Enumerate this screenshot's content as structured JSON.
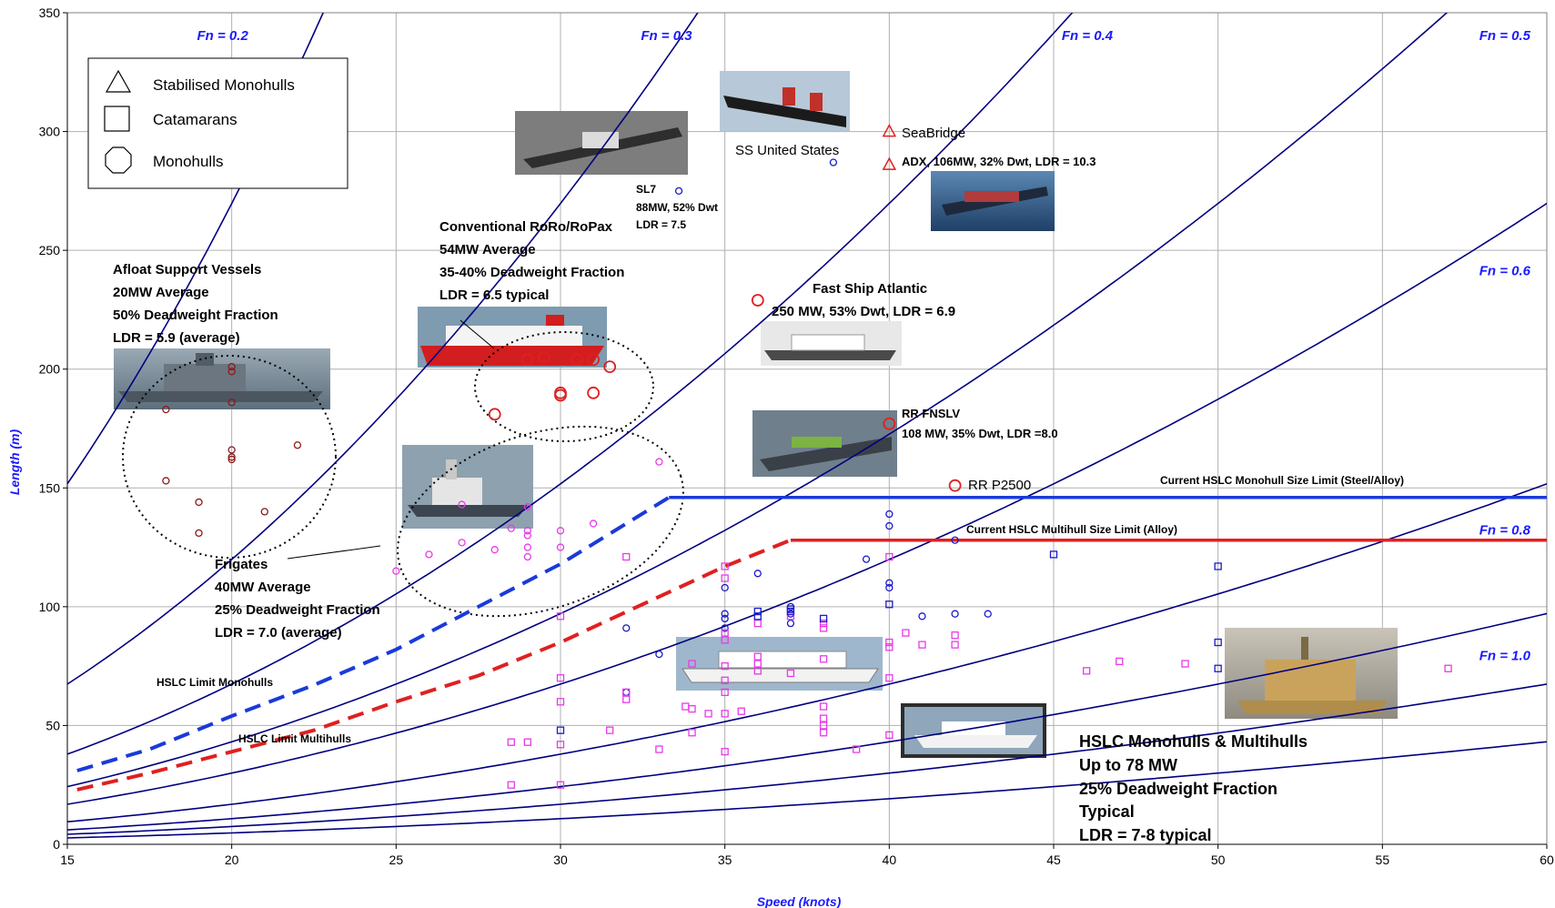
{
  "chart_data": {
    "type": "scatter",
    "title": "",
    "xlabel": "Speed (knots)",
    "ylabel": "Length (m)",
    "xlim": [
      15,
      60
    ],
    "ylim": [
      0,
      350
    ],
    "xticks": [
      15,
      20,
      25,
      30,
      35,
      40,
      45,
      50,
      55,
      60
    ],
    "yticks": [
      0,
      50,
      100,
      150,
      200,
      250,
      300,
      350
    ],
    "grid": true,
    "legend": {
      "placement": "top-left",
      "entries": [
        {
          "name": "Stabilised Monohulls",
          "marker": "triangle"
        },
        {
          "name": "Catamarans",
          "marker": "square"
        },
        {
          "name": "Monohulls",
          "marker": "octagon"
        }
      ]
    },
    "froude_lines": [
      {
        "label": "Fn = 0.2",
        "fn": 0.2
      },
      {
        "label": "Fn = 0.3",
        "fn": 0.3
      },
      {
        "label": "Fn = 0.4",
        "fn": 0.4
      },
      {
        "label": "Fn = 0.5",
        "fn": 0.5
      },
      {
        "label": "Fn = 0.6",
        "fn": 0.6
      },
      {
        "label": "Fn = 0.8",
        "fn": 0.8
      },
      {
        "label": "Fn = 1.0",
        "fn": 1.0
      },
      {
        "label": "",
        "fn": 1.2
      },
      {
        "label": "",
        "fn": 1.5
      }
    ],
    "limit_curves": [
      {
        "name": "HSLC Limit Monohulls",
        "color": "#1a3adb",
        "x": [
          15.3,
          17.5,
          20,
          22.5,
          25,
          27.5,
          30,
          32,
          33.3
        ],
        "y": [
          31,
          40,
          54,
          67,
          82,
          100,
          118,
          135,
          146
        ]
      },
      {
        "name": "HSLC Limit Multihulls",
        "color": "#e02020",
        "x": [
          15.3,
          17.5,
          20,
          22.5,
          25,
          27.5,
          30,
          32.5,
          35,
          37
        ],
        "y": [
          23,
          30,
          39,
          48,
          60,
          71,
          85,
          101,
          117,
          128
        ]
      }
    ],
    "size_limits": [
      {
        "name": "Current HSLC Monohull Size Limit (Steel/Alloy)",
        "color": "#1a3adb",
        "x": [
          33.3,
          60
        ],
        "y": 146
      },
      {
        "name": "Current HSLC Multihull Size Limit (Alloy)",
        "color": "#e02020",
        "x": [
          37,
          60
        ],
        "y": 128
      }
    ],
    "series": [
      {
        "marker": "octagon",
        "color": "#8b1a1a",
        "points": [
          [
            18,
            183
          ],
          [
            18,
            153
          ],
          [
            19,
            144
          ],
          [
            19,
            131
          ],
          [
            20,
            201
          ],
          [
            20,
            199
          ],
          [
            20,
            186
          ],
          [
            20,
            166
          ],
          [
            20,
            163
          ],
          [
            20,
            162
          ],
          [
            21,
            140
          ],
          [
            22,
            168
          ]
        ]
      },
      {
        "marker": "octagon",
        "color": "#e02020",
        "points": [
          [
            28,
            181
          ],
          [
            29,
            204
          ],
          [
            29.5,
            205
          ],
          [
            30,
            190
          ],
          [
            30,
            189
          ],
          [
            30.5,
            204
          ],
          [
            31,
            190
          ],
          [
            31,
            204
          ],
          [
            31.5,
            201
          ],
          [
            36,
            229
          ],
          [
            40,
            177
          ],
          [
            42,
            151
          ]
        ]
      },
      {
        "marker": "octagon",
        "color": "#e83ae8",
        "points": [
          [
            25,
            115
          ],
          [
            26,
            122
          ],
          [
            27,
            127
          ],
          [
            27,
            143
          ],
          [
            28,
            124
          ],
          [
            28.5,
            133
          ],
          [
            29,
            142
          ],
          [
            29,
            132
          ],
          [
            29,
            130
          ],
          [
            29,
            125
          ],
          [
            29,
            121
          ],
          [
            30,
            132
          ],
          [
            30,
            125
          ],
          [
            31,
            135
          ],
          [
            33,
            161
          ]
        ]
      },
      {
        "marker": "octagon",
        "color": "#1a1acc",
        "points": [
          [
            32,
            91
          ],
          [
            32,
            64
          ],
          [
            33,
            80
          ],
          [
            33.6,
            275
          ],
          [
            35,
            108
          ],
          [
            35,
            97
          ],
          [
            35,
            95
          ],
          [
            35,
            91
          ],
          [
            36,
            114
          ],
          [
            37,
            100
          ],
          [
            37,
            97
          ],
          [
            37,
            93
          ],
          [
            38.3,
            287
          ],
          [
            39.3,
            120
          ],
          [
            40,
            139
          ],
          [
            40,
            134
          ],
          [
            40,
            110
          ],
          [
            40,
            108
          ],
          [
            41,
            96
          ],
          [
            42,
            128
          ],
          [
            42,
            97
          ],
          [
            43,
            97
          ]
        ]
      },
      {
        "marker": "square",
        "color": "#e83ae8",
        "points": [
          [
            28.5,
            43
          ],
          [
            28.5,
            25
          ],
          [
            29,
            43
          ],
          [
            30,
            96
          ],
          [
            30,
            70
          ],
          [
            30,
            60
          ],
          [
            30,
            42
          ],
          [
            30,
            25
          ],
          [
            31.5,
            48
          ],
          [
            32,
            121
          ],
          [
            32,
            64
          ],
          [
            32,
            61
          ],
          [
            33,
            40
          ],
          [
            34,
            76
          ],
          [
            33.8,
            58
          ],
          [
            34,
            57
          ],
          [
            34,
            47
          ],
          [
            34.5,
            55
          ],
          [
            35,
            117
          ],
          [
            35,
            112
          ],
          [
            35,
            89
          ],
          [
            35,
            86
          ],
          [
            35,
            75
          ],
          [
            35,
            69
          ],
          [
            35,
            64
          ],
          [
            35,
            55
          ],
          [
            35,
            39
          ],
          [
            35.5,
            56
          ],
          [
            36,
            93
          ],
          [
            36,
            79
          ],
          [
            36,
            76
          ],
          [
            36,
            73
          ],
          [
            37,
            96
          ],
          [
            37,
            72
          ],
          [
            38,
            93
          ],
          [
            38,
            91
          ],
          [
            38,
            78
          ],
          [
            38,
            58
          ],
          [
            38,
            53
          ],
          [
            38,
            50
          ],
          [
            38,
            47
          ],
          [
            39,
            40
          ],
          [
            40,
            121
          ],
          [
            40,
            85
          ],
          [
            40,
            83
          ],
          [
            40,
            70
          ],
          [
            40,
            46
          ],
          [
            40.5,
            89
          ],
          [
            41,
            84
          ],
          [
            42,
            88
          ],
          [
            42,
            84
          ],
          [
            46,
            73
          ],
          [
            47,
            77
          ],
          [
            49,
            76
          ],
          [
            57,
            74
          ]
        ]
      },
      {
        "marker": "square",
        "color": "#1a1acc",
        "points": [
          [
            30,
            48
          ],
          [
            36,
            98
          ],
          [
            36,
            96
          ],
          [
            37,
            99
          ],
          [
            37,
            98
          ],
          [
            38,
            95
          ],
          [
            40,
            101
          ],
          [
            45,
            122
          ],
          [
            50,
            117
          ],
          [
            50,
            85
          ],
          [
            50,
            74
          ]
        ]
      },
      {
        "marker": "triangle",
        "color": "#e02020",
        "points": [
          [
            40,
            300
          ],
          [
            40,
            286
          ]
        ]
      }
    ],
    "annotations": {
      "afloat": [
        "Afloat Support Vessels",
        "20MW Average",
        "50% Deadweight Fraction",
        "LDR = 5.9 (average)"
      ],
      "roro": [
        "Conventional RoRo/RoPax",
        "54MW Average",
        "35-40% Deadweight Fraction",
        "LDR = 6.5 typical"
      ],
      "frigates": [
        "Frigates",
        "40MW Average",
        "25% Deadweight Fraction",
        "LDR = 7.0 (average)"
      ],
      "sl7": [
        "SL7",
        "88MW, 52% Dwt",
        "LDR = 7.5"
      ],
      "ss_united_states": "SS United States",
      "seabridge": "SeaBridge",
      "adx": "ADX, 106MW, 32% Dwt, LDR = 10.3",
      "fast_ship": [
        "Fast Ship Atlantic",
        "250 MW, 53% Dwt, LDR = 6.9"
      ],
      "rr_fnslv": [
        "RR FNSLV",
        "108 MW, 35% Dwt, LDR =8.0"
      ],
      "rr_p2500": "RR P2500",
      "hslc_mono_label": "HSLC Limit Monohulls",
      "hslc_multi_label": "HSLC Limit Multihulls",
      "mono_size_limit": "Current HSLC Monohull Size Limit (Steel/Alloy)",
      "multi_size_limit": "Current HSLC Multihull Size Limit (Alloy)",
      "hslc_summary": [
        "HSLC Monohulls & Multihulls",
        "Up to 78 MW",
        "25% Deadweight Fraction",
        "Typical",
        "LDR = 7-8 typical"
      ]
    },
    "photos": [
      "afloat-support-vessel-photo",
      "roro-ferry-photo",
      "frigate-photo",
      "sl7-photo",
      "ss-united-states-photo",
      "adx-ship-photo",
      "fast-ship-atlantic-photo",
      "fnslv-photo",
      "hslc-monohull-photo",
      "hslc-catamaran-photo",
      "trimaran-photo"
    ],
    "colors": {
      "froude": "#000080",
      "grid": "#b0b0b0",
      "axis_title": "#1a1aff"
    }
  }
}
